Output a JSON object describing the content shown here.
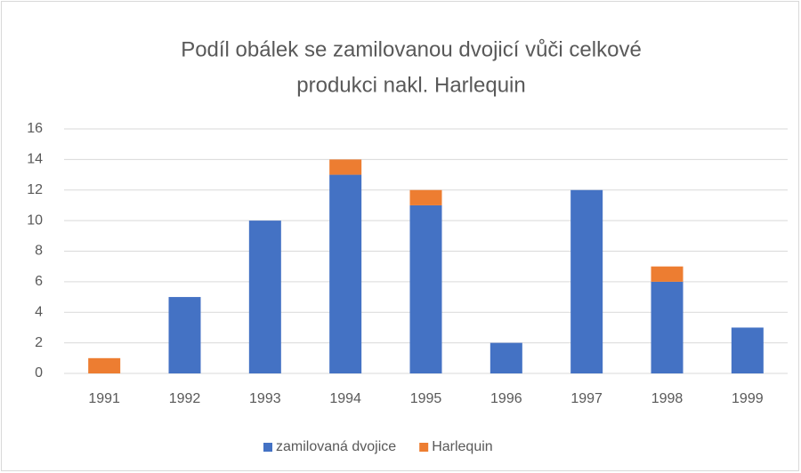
{
  "chart_data": {
    "type": "stacked_bar",
    "title": [
      "Podíl obálek se zamilovanou dvojicí vůči celkové",
      "produkci nakl. Harlequin"
    ],
    "categories": [
      "1991",
      "1992",
      "1993",
      "1994",
      "1995",
      "1996",
      "1997",
      "1998",
      "1999"
    ],
    "series": [
      {
        "name": "zamilovaná dvojice",
        "color": "#4472c4",
        "values": [
          0,
          5,
          10,
          13,
          11,
          2,
          12,
          6,
          3
        ]
      },
      {
        "name": "Harlequin",
        "color": "#ed7d31",
        "values": [
          1,
          0,
          0,
          1,
          1,
          0,
          0,
          1,
          0
        ]
      }
    ],
    "ylim": [
      0,
      16
    ],
    "yticks": [
      0,
      2,
      4,
      6,
      8,
      10,
      12,
      14,
      16
    ],
    "grid": true,
    "legend": "bottom"
  }
}
